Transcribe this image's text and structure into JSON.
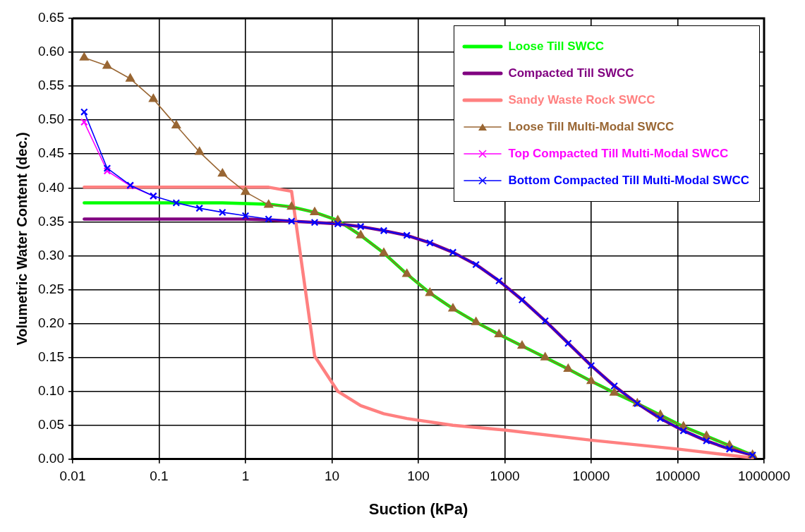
{
  "chart_data": {
    "type": "line",
    "xlabel": "Suction (kPa)",
    "ylabel": "Volumetric Water Content (dec.)",
    "log": "x",
    "grid": true,
    "legend": "top right",
    "xlim": [
      0.01,
      1000000
    ],
    "xticks": [
      0.01,
      0.1,
      1,
      10,
      100,
      1000,
      10000,
      100000,
      1000000
    ],
    "ylim": [
      0,
      0.65
    ],
    "yticks": [
      {
        "value": 0,
        "label": "0.00"
      },
      {
        "value": 0.05,
        "label": "0.05"
      },
      {
        "value": 0.1,
        "label": "0.10"
      },
      {
        "value": 0.15,
        "label": "0.15"
      },
      {
        "value": 0.2,
        "label": "0.20"
      },
      {
        "value": 0.25,
        "label": "0.25"
      },
      {
        "value": 0.3,
        "label": "0.30"
      },
      {
        "value": 0.35,
        "label": "0.35"
      },
      {
        "value": 0.4,
        "label": "0.40"
      },
      {
        "value": 0.45,
        "label": "0.45"
      },
      {
        "value": 0.5,
        "label": "0.50"
      },
      {
        "value": 0.55,
        "label": "0.55"
      },
      {
        "value": 0.6,
        "label": "0.60"
      },
      {
        "value": 0.65,
        "label": "0.65"
      }
    ],
    "x": [
      0.0136,
      0.0251,
      0.0464,
      0.0858,
      0.158,
      0.293,
      0.541,
      1.0,
      1.85,
      3.41,
      6.31,
      11.7,
      21.5,
      39.8,
      73.6,
      136,
      251,
      464,
      858,
      1585,
      2929,
      5412,
      10000,
      18480,
      34150,
      63100,
      116600,
      215400,
      398100,
      735600
    ],
    "series": [
      {
        "name": "Loose Till SWCC",
        "color": "#00ff00",
        "marker": "none",
        "values": [
          0.378,
          0.378,
          0.378,
          0.378,
          0.378,
          0.378,
          0.378,
          0.377,
          0.376,
          0.372,
          0.364,
          0.352,
          0.33,
          0.304,
          0.273,
          0.245,
          0.222,
          0.202,
          0.184,
          0.167,
          0.15,
          0.133,
          0.115,
          0.098,
          0.082,
          0.065,
          0.048,
          0.034,
          0.02,
          0.006
        ]
      },
      {
        "name": "Compacted Till SWCC",
        "color": "#800080",
        "marker": "none",
        "values": [
          0.354,
          0.354,
          0.354,
          0.354,
          0.354,
          0.354,
          0.354,
          0.354,
          0.353,
          0.351,
          0.349,
          0.347,
          0.343,
          0.337,
          0.33,
          0.319,
          0.305,
          0.287,
          0.263,
          0.235,
          0.204,
          0.171,
          0.138,
          0.108,
          0.082,
          0.06,
          0.042,
          0.027,
          0.015,
          0.006
        ]
      },
      {
        "name": "Sandy Waste Rock SWCC",
        "color": "#ff8080",
        "marker": "none",
        "x": [
          0.0136,
          1.85,
          3.41,
          6.31,
          11.7,
          21.5,
          39.8,
          73.6,
          136,
          251,
          1000,
          10000,
          100000,
          735600
        ],
        "values": [
          0.401,
          0.401,
          0.395,
          0.152,
          0.1,
          0.079,
          0.067,
          0.06,
          0.055,
          0.05,
          0.043,
          0.028,
          0.015,
          0.002
        ]
      },
      {
        "name": "Loose Till Multi-Modal SWCC",
        "color": "#996633",
        "marker": "triangle",
        "values": [
          0.592,
          0.58,
          0.561,
          0.531,
          0.492,
          0.453,
          0.421,
          0.394,
          0.375,
          0.372,
          0.364,
          0.352,
          0.33,
          0.304,
          0.273,
          0.245,
          0.222,
          0.202,
          0.184,
          0.167,
          0.15,
          0.133,
          0.115,
          0.098,
          0.082,
          0.065,
          0.048,
          0.034,
          0.02,
          0.006
        ]
      },
      {
        "name": "Top Compacted Till Multi-Modal SWCC",
        "color": "#ff00ff",
        "marker": "cross",
        "values": [
          0.497,
          0.425,
          0.403,
          0.388,
          null,
          null,
          null,
          null,
          null,
          null,
          null,
          null,
          null,
          null,
          null,
          null,
          null,
          null,
          null,
          null,
          null,
          null,
          null,
          null,
          null,
          null,
          null,
          null,
          null,
          null
        ]
      },
      {
        "name": "Bottom Compacted Till Multi-Modal SWCC",
        "color": "#0000ff",
        "marker": "cross",
        "values": [
          0.512,
          0.429,
          0.404,
          0.388,
          0.378,
          0.37,
          0.364,
          0.359,
          0.354,
          0.351,
          0.349,
          0.347,
          0.343,
          0.337,
          0.33,
          0.319,
          0.305,
          0.287,
          0.263,
          0.235,
          0.204,
          0.171,
          0.138,
          0.108,
          0.082,
          0.06,
          0.042,
          0.027,
          0.015,
          0.006
        ]
      }
    ]
  }
}
